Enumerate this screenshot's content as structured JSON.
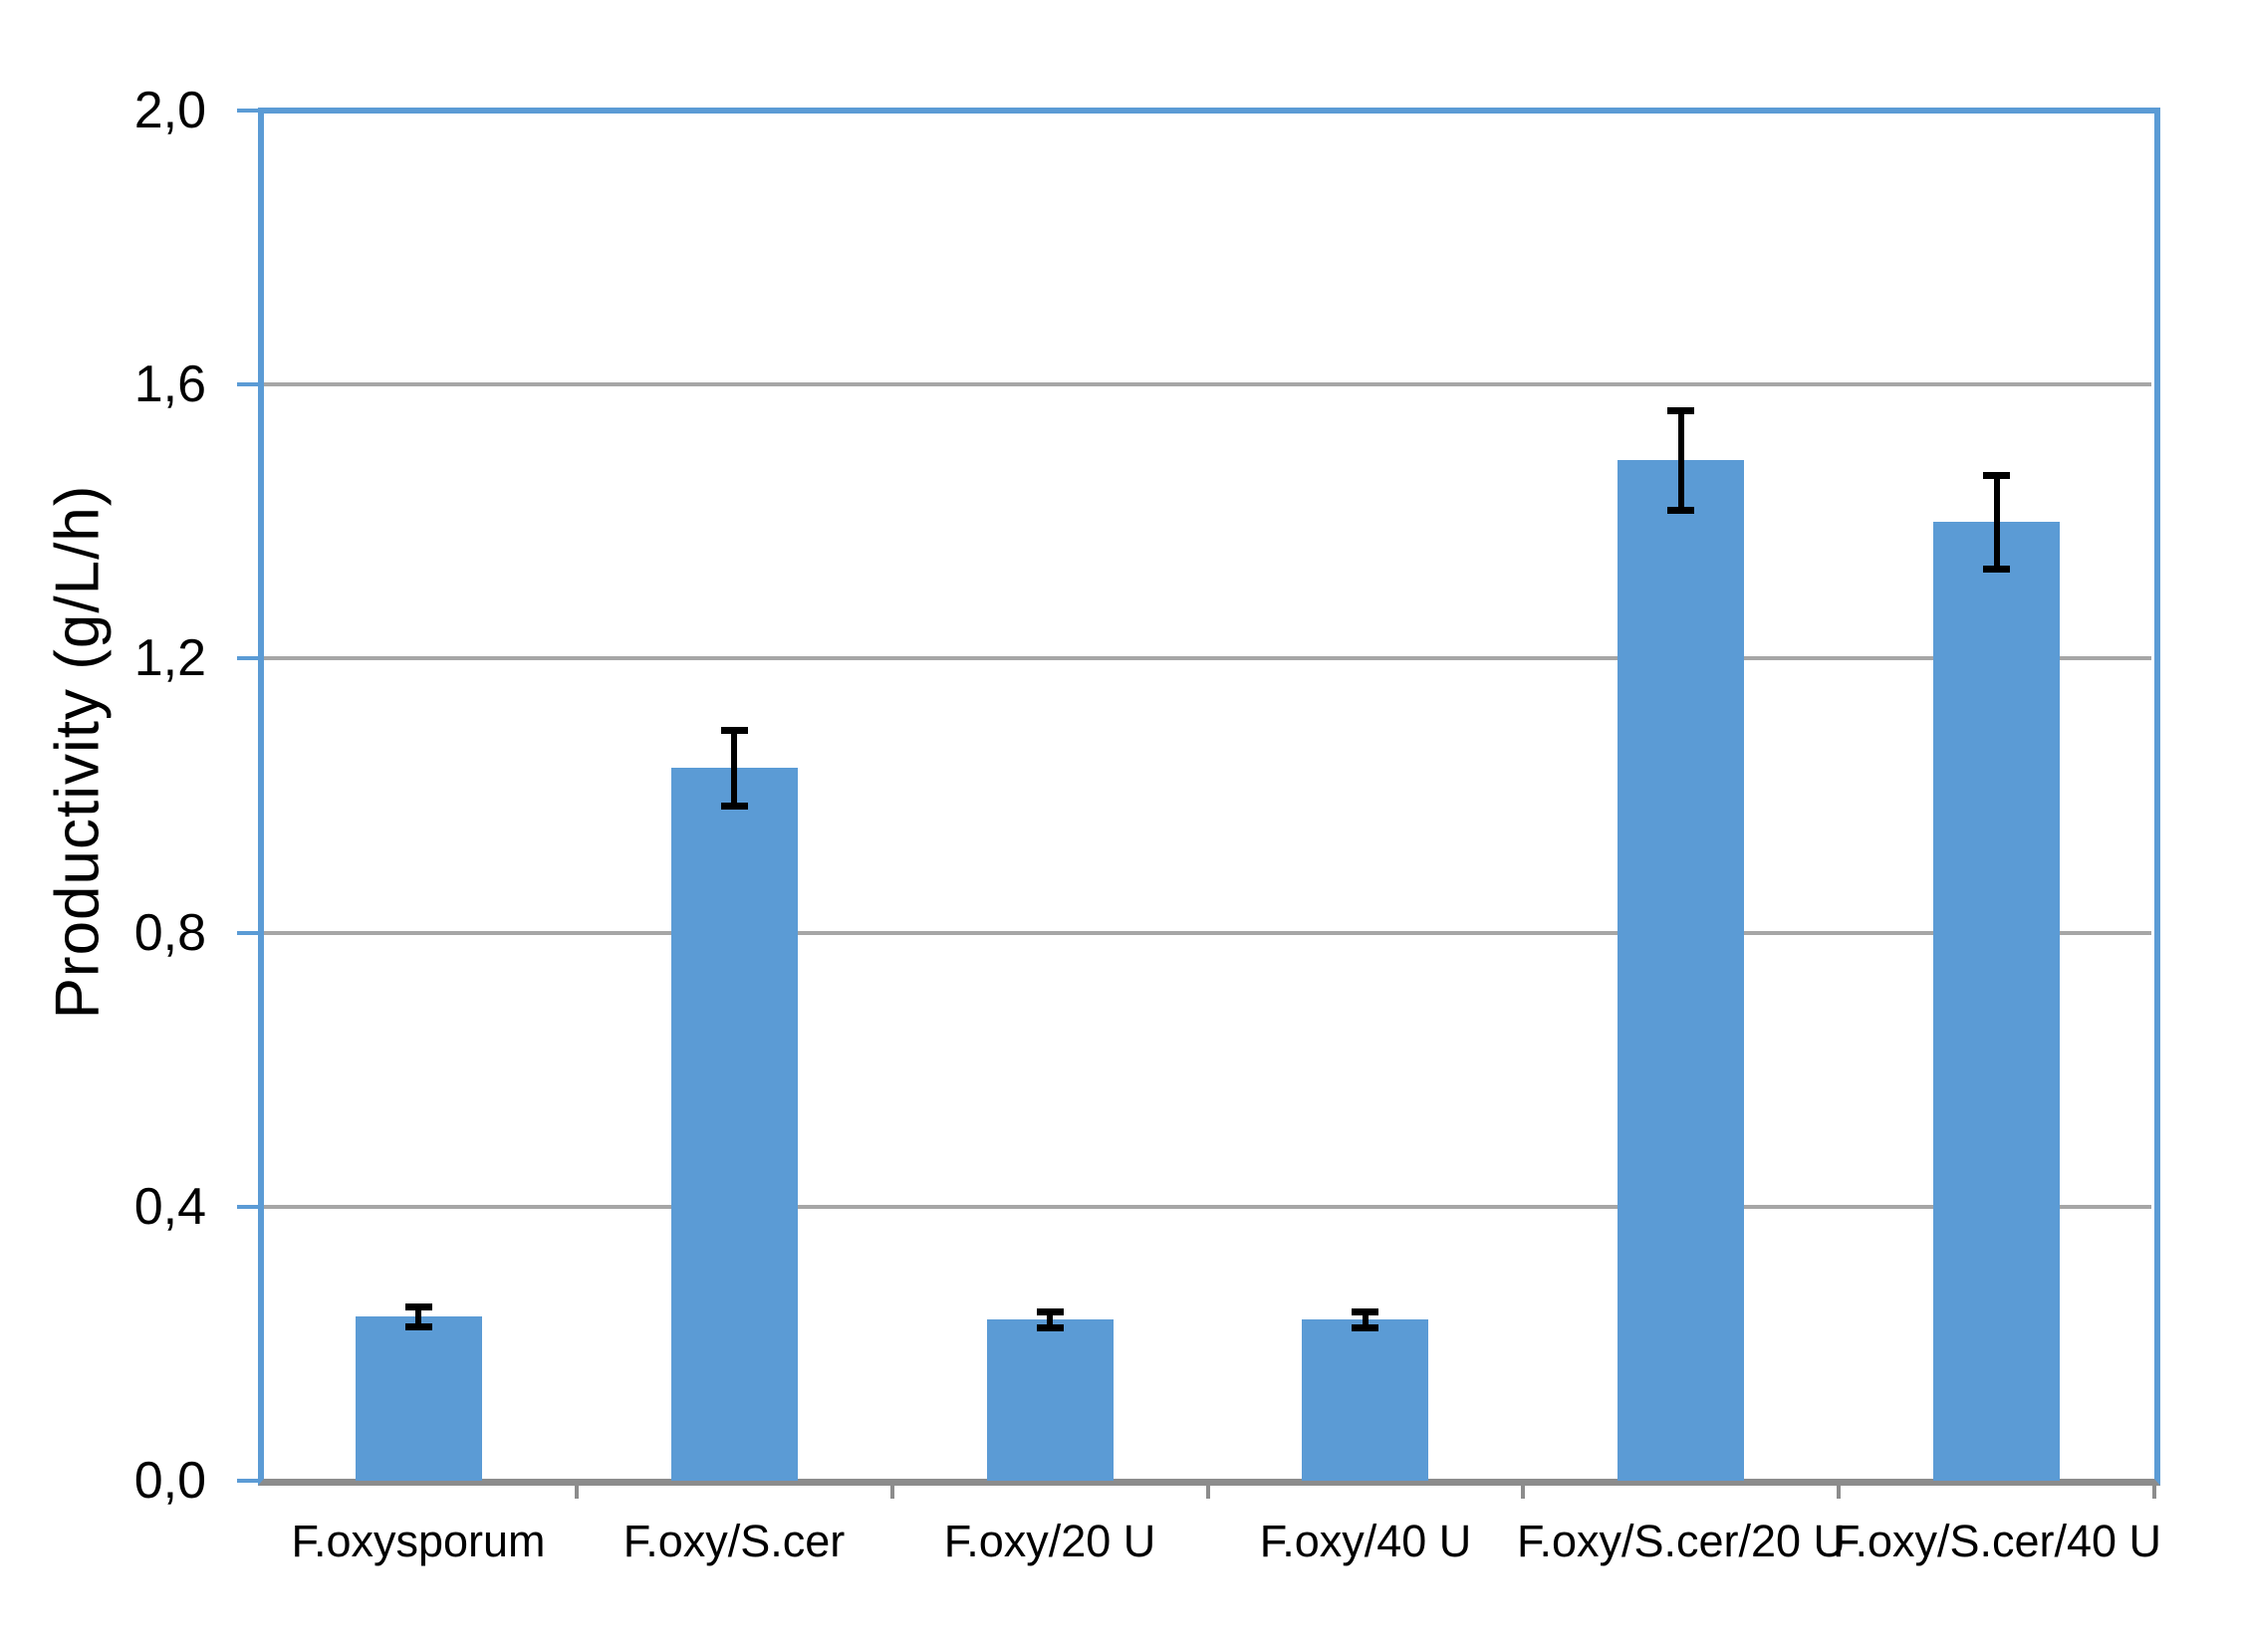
{
  "chart_data": {
    "type": "bar",
    "title": "",
    "xlabel": "",
    "ylabel": "Productivity (g/L/h)",
    "categories": [
      "F.oxysporum",
      "F.oxy/S.cer",
      "F.oxy/20 U",
      "F.oxy/40 U",
      "F.oxy/S.cer/20 U",
      "F.oxy/S.cer/40 U"
    ],
    "values": [
      0.24,
      1.04,
      0.235,
      0.235,
      1.49,
      1.4
    ],
    "error_bars": [
      0.015,
      0.055,
      0.012,
      0.012,
      0.073,
      0.068
    ],
    "ylim": [
      0,
      2.0
    ],
    "ytick_step": 0.4,
    "ytick_labels": [
      "0,0",
      "0,4",
      "0,8",
      "1,2",
      "1,6",
      "2,0"
    ],
    "decimal_separator": ",",
    "grid": true,
    "legend": "none",
    "bar_color": "#5B9BD5",
    "axis_color": "#5B9BD5",
    "gridline_color": "#A6A6A6",
    "baseline_color": "#8C8C8C",
    "error_bar_color": "#000000"
  }
}
